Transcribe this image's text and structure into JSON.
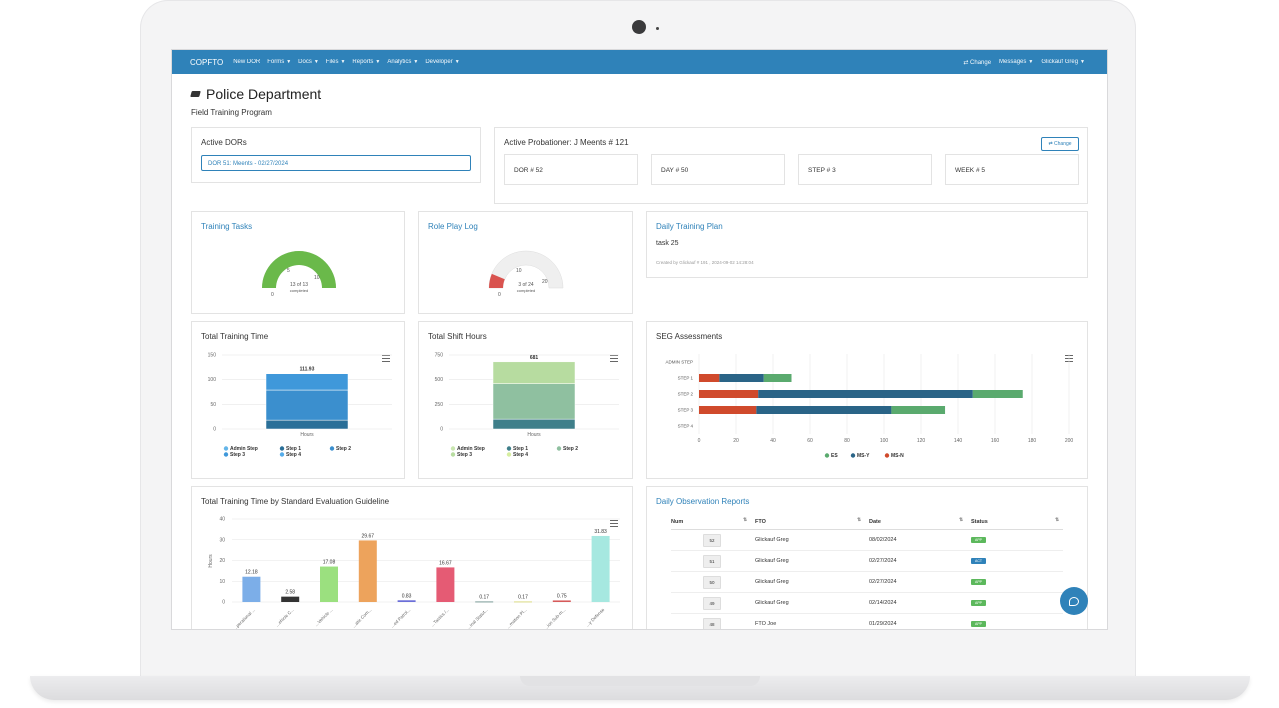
{
  "navbar": {
    "brand": "COPFTO",
    "items": [
      "New DOR",
      "Forms",
      "Docs",
      "Files",
      "Reports",
      "Analytics",
      "Developer"
    ],
    "dropdown_items": [
      "Forms",
      "Docs",
      "Files",
      "Reports",
      "Analytics",
      "Developer"
    ],
    "right": {
      "change": "⇄ Change",
      "messages": "Messages",
      "user": "Glickauf Greg"
    }
  },
  "header": {
    "title": "Police Department",
    "subtitle": "Field Training Program"
  },
  "active_dors": {
    "title": "Active DORs",
    "selected": "DOR 51: Meents - 02/27/2024"
  },
  "probationer": {
    "title": "Active Probationer: J Meents # 121",
    "change_label": "⇄ Change",
    "stats": [
      "DOR # 52",
      "DAY # 50",
      "STEP # 3",
      "WEEK # 5"
    ]
  },
  "training_tasks": {
    "title": "Training Tasks",
    "completed": 13,
    "total": 13,
    "caption": "13 of 13",
    "sub": "completed",
    "ticks": [
      "0",
      "5",
      "10"
    ]
  },
  "role_play": {
    "title": "Role Play Log",
    "completed": 3,
    "total": 24,
    "caption": "3 of 24",
    "sub": "completed",
    "ticks": [
      "0",
      "10",
      "20"
    ]
  },
  "daily_plan": {
    "title": "Daily Training Plan",
    "task": "task 25",
    "meta": "Created by Glickauf # 191 , 2024-09-02 14:28:04"
  },
  "charts": {
    "total_training_time": {
      "title": "Total Training Time",
      "chart_data": {
        "type": "bar",
        "stacked": true,
        "categories": [
          "Hours"
        ],
        "total_label": "111.93",
        "ylim": [
          0,
          150
        ],
        "yticks": [
          0,
          50,
          100,
          150
        ],
        "series": [
          {
            "name": "Admin Step",
            "values": [
              0
            ],
            "color": "#64b5e8"
          },
          {
            "name": "Step 1",
            "values": [
              18
            ],
            "color": "#2a6f98"
          },
          {
            "name": "Step 2",
            "values": [
              61
            ],
            "color": "#3b8fce"
          },
          {
            "name": "Step 3",
            "values": [
              33
            ],
            "color": "#3f98da"
          },
          {
            "name": "Step 4",
            "values": [
              0
            ],
            "color": "#55acea"
          }
        ],
        "legend": [
          "Admin Step",
          "Step 1",
          "Step 2",
          "Step 3",
          "Step 4"
        ]
      }
    },
    "total_shift_hours": {
      "title": "Total Shift Hours",
      "chart_data": {
        "type": "bar",
        "stacked": true,
        "categories": [
          "Hours"
        ],
        "total_label": "681",
        "ylim": [
          0,
          750
        ],
        "yticks": [
          0,
          250,
          500,
          750
        ],
        "series": [
          {
            "name": "Admin Step",
            "values": [
              0
            ],
            "color": "#c9e6b0"
          },
          {
            "name": "Step 1",
            "values": [
              100
            ],
            "color": "#3f7f8a"
          },
          {
            "name": "Step 2",
            "values": [
              360
            ],
            "color": "#8fc0a0"
          },
          {
            "name": "Step 3",
            "values": [
              221
            ],
            "color": "#b7dca0"
          },
          {
            "name": "Step 4",
            "values": [
              0
            ],
            "color": "#d6eea0"
          }
        ],
        "legend": [
          "Admin Step",
          "Step 1",
          "Step 2",
          "Step 3",
          "Step 4"
        ]
      }
    },
    "seg_assessments": {
      "title": "SEG Assessments",
      "chart_data": {
        "type": "bar",
        "orientation": "horizontal",
        "stacked": true,
        "categories": [
          "ADMIN STEP",
          "STEP 1",
          "STEP 2",
          "STEP 3",
          "STEP 4"
        ],
        "xlim": [
          0,
          200
        ],
        "xticks": [
          0,
          20,
          40,
          60,
          80,
          100,
          120,
          140,
          160,
          180,
          200
        ],
        "series": [
          {
            "name": "MS-N",
            "values": [
              0,
              11,
              32,
              31,
              0
            ],
            "color": "#d04a2c"
          },
          {
            "name": "MS-Y",
            "values": [
              0,
              24,
              116,
              73,
              0
            ],
            "color": "#2a6487"
          },
          {
            "name": "ES",
            "values": [
              0,
              15,
              27,
              29,
              0
            ],
            "color": "#5aaa6e"
          }
        ],
        "legend": [
          "ES",
          "MS-Y",
          "MS-N"
        ]
      }
    },
    "by_guideline": {
      "title": "Total Training Time by Standard Evaluation Guideline",
      "chart_data": {
        "type": "bar",
        "ylabel": "Hours",
        "ylim": [
          0,
          40
        ],
        "yticks": [
          0,
          10,
          20,
          30,
          40
        ],
        "categories": [
          "...perational ...",
          "...ehicle C...",
          "...Vehicle ...",
          "...atic Com...",
          "...ed Patrol...",
          "...Tactics /...",
          "...inal Statut...",
          "...mation Pl...",
          "...ion Sub-m...",
          "...y Defense"
        ],
        "values": [
          12.18,
          2.58,
          17.08,
          29.67,
          0.83,
          16.67,
          0.17,
          0.17,
          0.75,
          31.83
        ],
        "labels": [
          "12.18",
          "2.58",
          "17.08",
          "29.67",
          "0.83",
          "16.67",
          "0.17",
          "0.17",
          "0.75",
          "31.83"
        ],
        "colors": [
          "#7caee8",
          "#333333",
          "#9be07f",
          "#eda35c",
          "#6b6fd8",
          "#e55b74",
          "#2a5f5a",
          "#c9c93a",
          "#d65a5a",
          "#a6e8e0"
        ]
      }
    }
  },
  "observations": {
    "title": "Daily Observation Reports",
    "headers": [
      "Num",
      "FTO",
      "Date",
      "Status"
    ],
    "rows": [
      {
        "num": "52",
        "fto": "Glickauf Greg",
        "date": "08/02/2024",
        "status": "APP"
      },
      {
        "num": "51",
        "fto": "Glickauf Greg",
        "date": "02/27/2024",
        "status": "ACT"
      },
      {
        "num": "50",
        "fto": "Glickauf Greg",
        "date": "02/27/2024",
        "status": "APP"
      },
      {
        "num": "49",
        "fto": "Glickauf Greg",
        "date": "02/14/2024",
        "status": "APP"
      },
      {
        "num": "48",
        "fto": "FTO Joe",
        "date": "01/29/2024",
        "status": "APP"
      }
    ]
  }
}
